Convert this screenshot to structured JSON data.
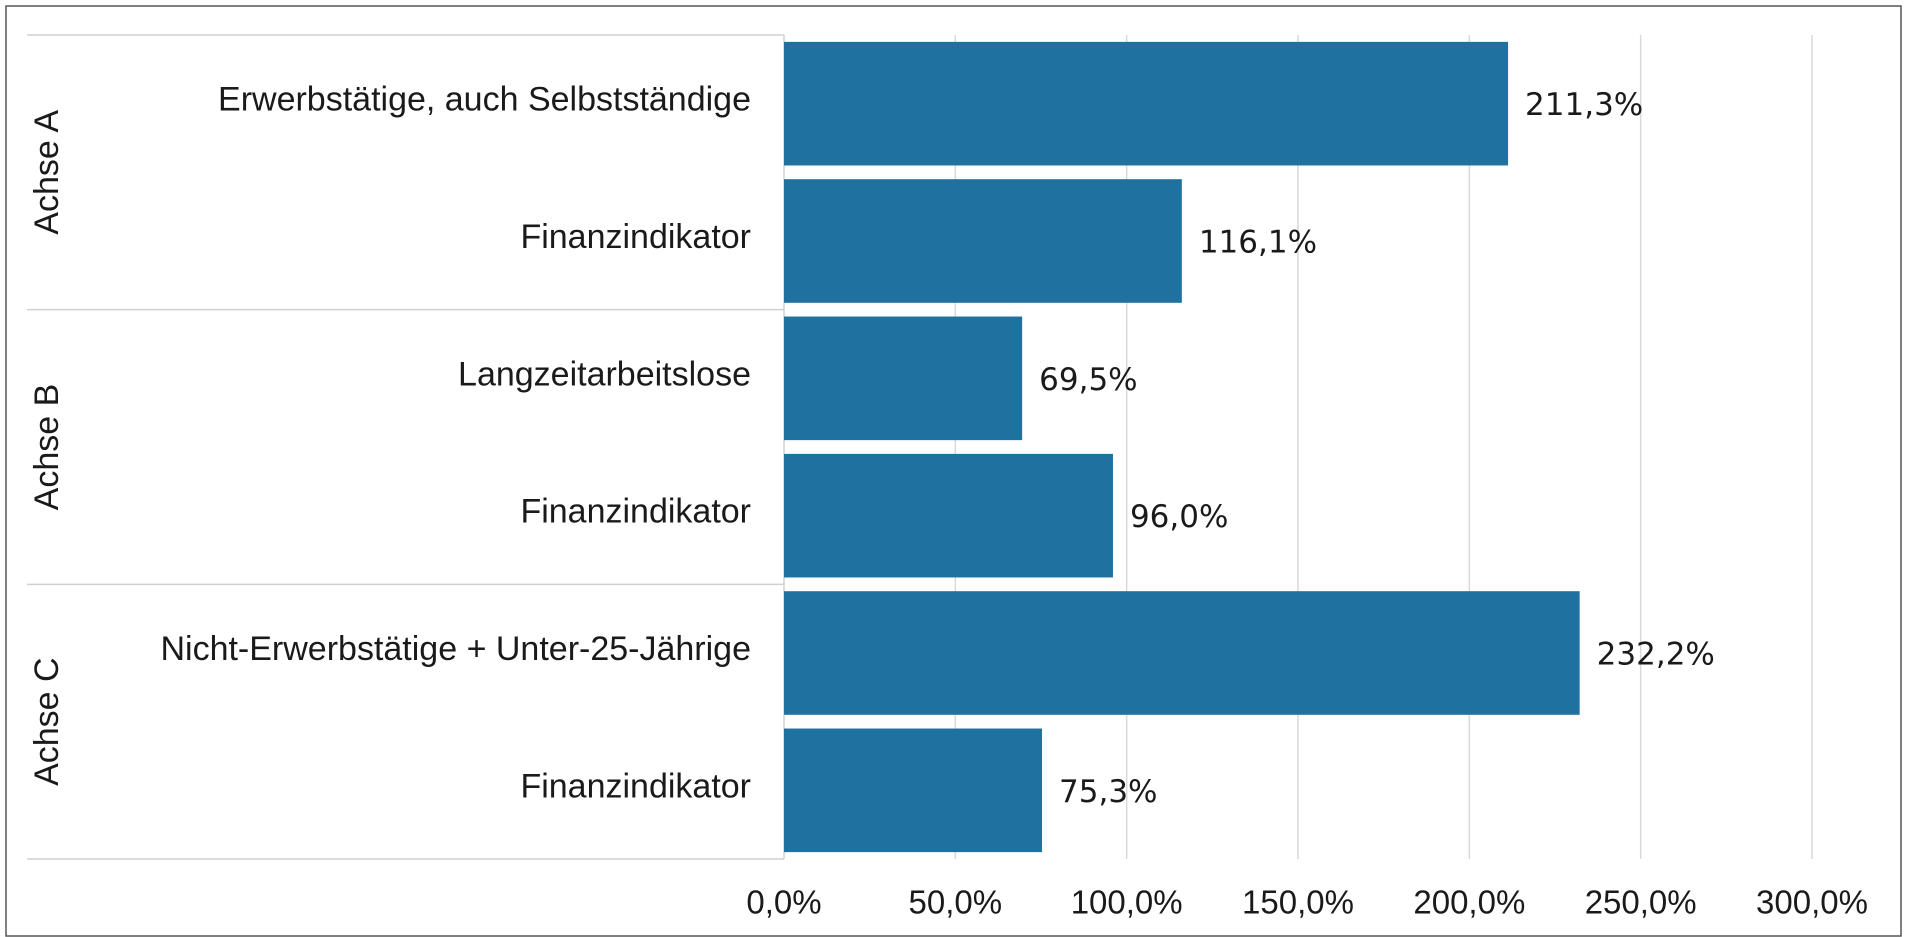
{
  "chart_data": {
    "type": "bar",
    "orientation": "horizontal",
    "groups": [
      "Achse A",
      "Achse B",
      "Achse C"
    ],
    "categories": [
      "Erwerbstätige, auch Selbstständige",
      "Finanzindikator",
      "Langzeitarbeitslose",
      "Finanzindikator",
      "Nicht-Erwerbstätige + Unter-25-Jährige",
      "Finanzindikator"
    ],
    "values": [
      211.3,
      116.1,
      69.5,
      96.0,
      232.2,
      75.3
    ],
    "value_labels": [
      "211,3%",
      "116,1%",
      "69,5%",
      "96,0%",
      "232,2%",
      "75,3%"
    ],
    "color": "#1f71a0",
    "xlim": [
      0,
      300
    ],
    "xticks": [
      {
        "value": 0,
        "label": "0,0%"
      },
      {
        "value": 50,
        "label": "50,0%"
      },
      {
        "value": 100,
        "label": "100,0%"
      },
      {
        "value": 150,
        "label": "150,0%"
      },
      {
        "value": 200,
        "label": "200,0%"
      },
      {
        "value": 250,
        "label": "250,0%"
      },
      {
        "value": 300,
        "label": "300,0%"
      }
    ],
    "grid": true
  }
}
